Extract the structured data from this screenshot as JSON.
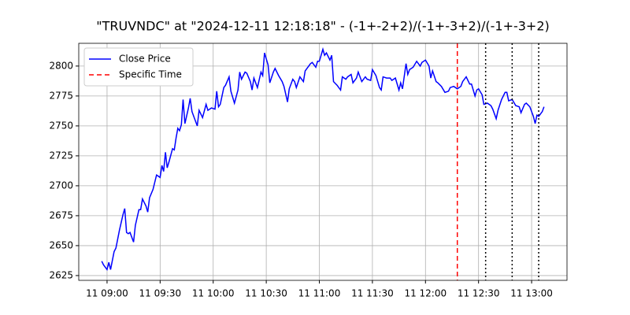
{
  "chart_data": {
    "type": "line",
    "title": "\"TRUVNDC\" at \"2024-12-11 12:18:18\" - (-1+-2+2)/(-1+-3+2)/(-1+-3+2)",
    "x": [
      "11 08:57",
      "11 08:58",
      "11 09:00",
      "11 09:01",
      "11 09:02",
      "11 09:04",
      "11 09:05",
      "11 09:07",
      "11 09:09",
      "11 09:10",
      "11 09:11",
      "11 09:12",
      "11 09:13",
      "11 09:15",
      "11 09:16",
      "11 09:18",
      "11 09:19",
      "11 09:20",
      "11 09:22",
      "11 09:23",
      "11 09:24",
      "11 09:26",
      "11 09:28",
      "11 09:30",
      "11 09:31",
      "11 09:32",
      "11 09:33",
      "11 09:34",
      "11 09:35",
      "11 09:37",
      "11 09:38",
      "11 09:39",
      "11 09:40",
      "11 09:41",
      "11 09:42",
      "11 09:43",
      "11 09:44",
      "11 09:46",
      "11 09:47",
      "11 09:48",
      "11 09:49",
      "11 09:51",
      "11 09:52",
      "11 09:54",
      "11 09:56",
      "11 09:57",
      "11 09:59",
      "11 10:01",
      "11 10:02",
      "11 10:03",
      "11 10:04",
      "11 10:06",
      "11 10:07",
      "11 10:09",
      "11 10:10",
      "11 10:12",
      "11 10:14",
      "11 10:15",
      "11 10:16",
      "11 10:18",
      "11 10:19",
      "11 10:21",
      "11 10:22",
      "11 10:23",
      "11 10:25",
      "11 10:27",
      "11 10:28",
      "11 10:29",
      "11 10:31",
      "11 10:32",
      "11 10:34",
      "11 10:35",
      "11 10:37",
      "11 10:39",
      "11 10:40",
      "11 10:42",
      "11 10:43",
      "11 10:45",
      "11 10:46",
      "11 10:47",
      "11 10:49",
      "11 10:51",
      "11 10:52",
      "11 10:55",
      "11 10:56",
      "11 10:58",
      "11 10:59",
      "11 11:00",
      "11 11:02",
      "11 11:03",
      "11 11:04",
      "11 11:06",
      "11 11:07",
      "11 11:08",
      "11 11:10",
      "11 11:12",
      "11 11:13",
      "11 11:15",
      "11 11:16",
      "11 11:18",
      "11 11:19",
      "11 11:21",
      "11 11:22",
      "11 11:24",
      "11 11:26",
      "11 11:27",
      "11 11:29",
      "11 11:30",
      "11 11:32",
      "11 11:34",
      "11 11:35",
      "11 11:36",
      "11 11:38",
      "11 11:40",
      "11 11:41",
      "11 11:43",
      "11 11:45",
      "11 11:46",
      "11 11:47",
      "11 11:49",
      "11 11:50",
      "11 11:51",
      "11 11:53",
      "11 11:55",
      "11 11:57",
      "11 11:58",
      "11 12:00",
      "11 12:02",
      "11 12:03",
      "11 12:04",
      "11 12:06",
      "11 12:07",
      "11 12:09",
      "11 12:11",
      "11 12:13",
      "11 12:14",
      "11 12:16",
      "11 12:18",
      "11 12:20",
      "11 12:21",
      "11 12:23",
      "11 12:25",
      "11 12:26",
      "11 12:28",
      "11 12:29",
      "11 12:30",
      "11 12:32",
      "11 12:33",
      "11 12:35",
      "11 12:37",
      "11 12:38",
      "11 12:40",
      "11 12:41",
      "11 12:43",
      "11 12:45",
      "11 12:46",
      "11 12:47",
      "11 12:49",
      "11 12:51",
      "11 12:53",
      "11 12:54",
      "11 12:56",
      "11 12:57",
      "11 12:59",
      "11 13:01",
      "11 13:02",
      "11 13:03",
      "11 13:04",
      "11 13:06",
      "11 13:07"
    ],
    "series": [
      {
        "name": "Close Price",
        "color": "#0000ff",
        "values": [
          2637,
          2634,
          2630,
          2636,
          2630,
          2645,
          2648,
          2663,
          2676,
          2681,
          2661,
          2660,
          2661,
          2653,
          2667,
          2680,
          2680,
          2689,
          2683,
          2678,
          2690,
          2697,
          2709,
          2707,
          2717,
          2712,
          2728,
          2715,
          2720,
          2731,
          2730,
          2740,
          2748,
          2746,
          2751,
          2772,
          2752,
          2765,
          2773,
          2762,
          2758,
          2750,
          2763,
          2757,
          2768,
          2763,
          2765,
          2764,
          2779,
          2766,
          2768,
          2782,
          2784,
          2791,
          2779,
          2769,
          2780,
          2795,
          2789,
          2795,
          2794,
          2787,
          2780,
          2790,
          2782,
          2795,
          2792,
          2811,
          2801,
          2786,
          2795,
          2798,
          2792,
          2787,
          2783,
          2770,
          2781,
          2789,
          2787,
          2782,
          2791,
          2787,
          2796,
          2802,
          2803,
          2799,
          2804,
          2804,
          2814,
          2809,
          2811,
          2805,
          2809,
          2787,
          2784,
          2780,
          2791,
          2789,
          2791,
          2793,
          2786,
          2790,
          2795,
          2787,
          2791,
          2789,
          2788,
          2797,
          2792,
          2782,
          2780,
          2791,
          2790,
          2790,
          2788,
          2790,
          2780,
          2786,
          2781,
          2802,
          2793,
          2797,
          2799,
          2804,
          2800,
          2803,
          2805,
          2800,
          2790,
          2796,
          2787,
          2786,
          2783,
          2778,
          2779,
          2782,
          2783,
          2781,
          2783,
          2787,
          2791,
          2785,
          2785,
          2775,
          2780,
          2781,
          2776,
          2768,
          2769,
          2767,
          2764,
          2756,
          2763,
          2772,
          2778,
          2778,
          2771,
          2772,
          2767,
          2766,
          2761,
          2768,
          2769,
          2766,
          2758,
          2752,
          2759,
          2758,
          2762,
          2766
        ]
      }
    ],
    "vlines": [
      {
        "name": "Specific Time",
        "x": "11 12:18",
        "color": "#ff0000",
        "dash": "dashed"
      },
      {
        "x": "11 12:34",
        "color": "#000000",
        "dash": "dotted"
      },
      {
        "x": "11 12:49",
        "color": "#000000",
        "dash": "dotted"
      },
      {
        "x": "11 13:04",
        "color": "#000000",
        "dash": "dotted"
      }
    ],
    "xlim": [
      "11 08:44",
      "11 13:20"
    ],
    "xticks": [
      "11 09:00",
      "11 09:30",
      "11 10:00",
      "11 10:30",
      "11 11:00",
      "11 11:30",
      "11 12:00",
      "11 12:30",
      "11 13:00"
    ],
    "ylim": [
      2621,
      2819
    ],
    "yticks": [
      2625,
      2650,
      2675,
      2700,
      2725,
      2750,
      2775,
      2800
    ],
    "grid": true,
    "legend": "upper left"
  }
}
